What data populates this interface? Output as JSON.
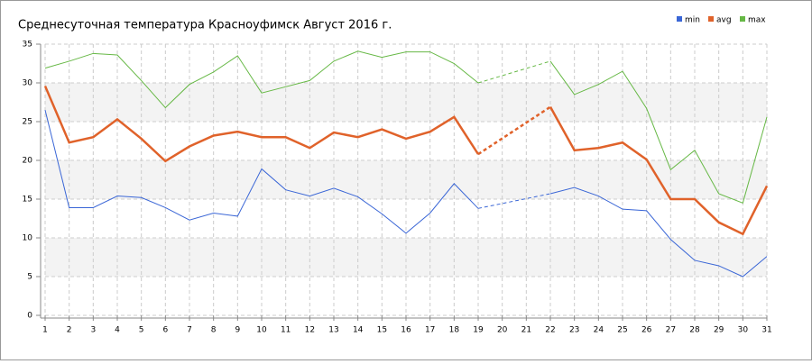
{
  "chart_data": {
    "type": "line",
    "title": "Среднесуточная температура Красноуфимск  Август 2016 г.",
    "x": [
      1,
      2,
      3,
      4,
      5,
      6,
      7,
      8,
      9,
      10,
      11,
      12,
      13,
      14,
      15,
      16,
      17,
      18,
      19,
      20,
      21,
      22,
      23,
      24,
      25,
      26,
      27,
      28,
      29,
      30,
      31
    ],
    "xlim": [
      1,
      31
    ],
    "xticks": [
      1,
      2,
      3,
      4,
      5,
      6,
      7,
      8,
      9,
      10,
      11,
      12,
      13,
      14,
      15,
      16,
      17,
      18,
      19,
      20,
      21,
      22,
      23,
      24,
      25,
      26,
      27,
      28,
      29,
      30,
      31
    ],
    "ylim": [
      0,
      35
    ],
    "yticks": [
      0,
      5,
      10,
      15,
      20,
      25,
      30,
      35
    ],
    "grid": true,
    "legend": "top-right",
    "series": [
      {
        "name": "min",
        "color": "#3a66d6",
        "values": [
          26.5,
          13.9,
          13.9,
          15.4,
          15.2,
          13.9,
          12.3,
          13.2,
          12.8,
          18.9,
          16.2,
          15.4,
          16.4,
          15.3,
          13.1,
          10.6,
          13.2,
          17.0,
          13.8,
          null,
          null,
          15.7,
          16.5,
          15.4,
          13.7,
          13.5,
          9.8,
          7.1,
          6.4,
          5.0,
          7.6
        ]
      },
      {
        "name": "avg",
        "color": "#e0622a",
        "values": [
          29.6,
          22.3,
          23.0,
          25.3,
          22.8,
          19.9,
          21.8,
          23.2,
          23.7,
          23.0,
          23.0,
          21.6,
          23.6,
          23.0,
          24.0,
          22.8,
          23.7,
          25.6,
          20.8,
          null,
          null,
          26.9,
          21.3,
          21.6,
          22.3,
          20.1,
          15.0,
          15.0,
          12.0,
          10.5,
          16.7
        ]
      },
      {
        "name": "max",
        "color": "#66b845",
        "values": [
          31.9,
          32.8,
          33.8,
          33.6,
          30.3,
          26.8,
          29.8,
          31.4,
          33.5,
          28.7,
          29.5,
          30.3,
          32.8,
          34.1,
          33.3,
          34.0,
          34.0,
          32.5,
          30.0,
          null,
          null,
          32.8,
          28.5,
          29.8,
          31.5,
          26.7,
          18.8,
          21.3,
          15.7,
          14.5,
          25.6
        ]
      }
    ]
  }
}
